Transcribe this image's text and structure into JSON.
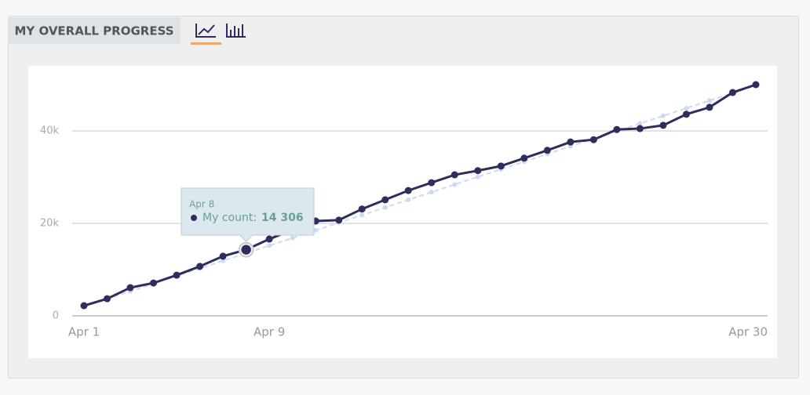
{
  "tab_title": "MY OVERALL PROGRESS",
  "chart_data": {
    "type": "line",
    "categories": [
      "Apr 1",
      null,
      null,
      null,
      null,
      null,
      null,
      null,
      "Apr 9",
      null,
      null,
      null,
      null,
      null,
      null,
      null,
      null,
      null,
      null,
      null,
      null,
      null,
      null,
      null,
      null,
      null,
      null,
      null,
      null,
      "Apr 30"
    ],
    "series": [
      {
        "name": "My count",
        "color": "#2e2d5c",
        "values": [
          2200,
          3700,
          6100,
          7100,
          8800,
          10700,
          12900,
          14306,
          16600,
          18600,
          20500,
          20700,
          23100,
          25100,
          27100,
          28800,
          30500,
          31400,
          32400,
          34100,
          35800,
          37600,
          38100,
          40300,
          40500,
          41200,
          43600,
          45100,
          48300,
          50000
        ],
        "value_labels": [
          null,
          null,
          null,
          null,
          null,
          null,
          null,
          "14 306",
          null,
          null,
          null,
          null,
          null,
          null,
          null,
          null,
          null,
          null,
          null,
          null,
          null,
          null,
          null,
          null,
          null,
          null,
          null,
          null,
          null,
          null
        ]
      },
      {
        "color": "#c9dbf4",
        "dashed": true,
        "values": [
          2000,
          3650,
          5300,
          6950,
          8600,
          10250,
          11900,
          13550,
          15200,
          16850,
          18500,
          20150,
          21800,
          23450,
          25100,
          26750,
          28400,
          30050,
          31700,
          33350,
          35000,
          36650,
          38300,
          39950,
          41600,
          43250,
          44900,
          46550,
          48200,
          49850
        ]
      }
    ],
    "ylim": [
      0,
      52000
    ],
    "yticks": [
      0,
      {
        "value": 20000,
        "label": "20k"
      },
      {
        "value": 40000,
        "label": "40k"
      }
    ],
    "grid": true,
    "tooltip": {
      "title": "Apr 8",
      "label": "My count:"
    }
  }
}
